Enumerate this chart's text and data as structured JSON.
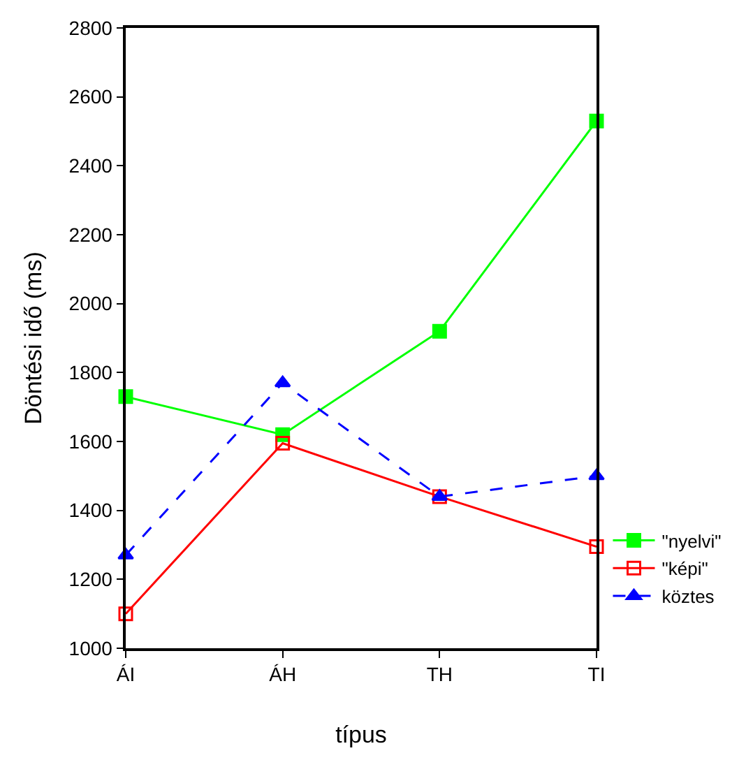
{
  "chart_data": {
    "type": "line",
    "xlabel": "típus",
    "ylabel": "Döntési idő (ms)",
    "categories": [
      "ÁI",
      "ÁH",
      "TH",
      "TI"
    ],
    "series": [
      {
        "name": "\"nyelvi\"",
        "color": "#00ff00",
        "values": [
          1730,
          1620,
          1920,
          2530
        ],
        "marker": "square",
        "line_style": "solid"
      },
      {
        "name": "\"képi\"",
        "color": "#ff0000",
        "values": [
          1100,
          1595,
          1440,
          1295
        ],
        "marker": "square-open",
        "line_style": "solid"
      },
      {
        "name": "köztes",
        "color": "#0000ff",
        "values": [
          1270,
          1770,
          1440,
          1500
        ],
        "marker": "triangle",
        "line_style": "dashed"
      }
    ],
    "ylim": [
      1000,
      2800
    ],
    "yticks": [
      1000,
      1200,
      1400,
      1600,
      1800,
      2000,
      2200,
      2400,
      2600,
      2800
    ],
    "legend": "right"
  }
}
